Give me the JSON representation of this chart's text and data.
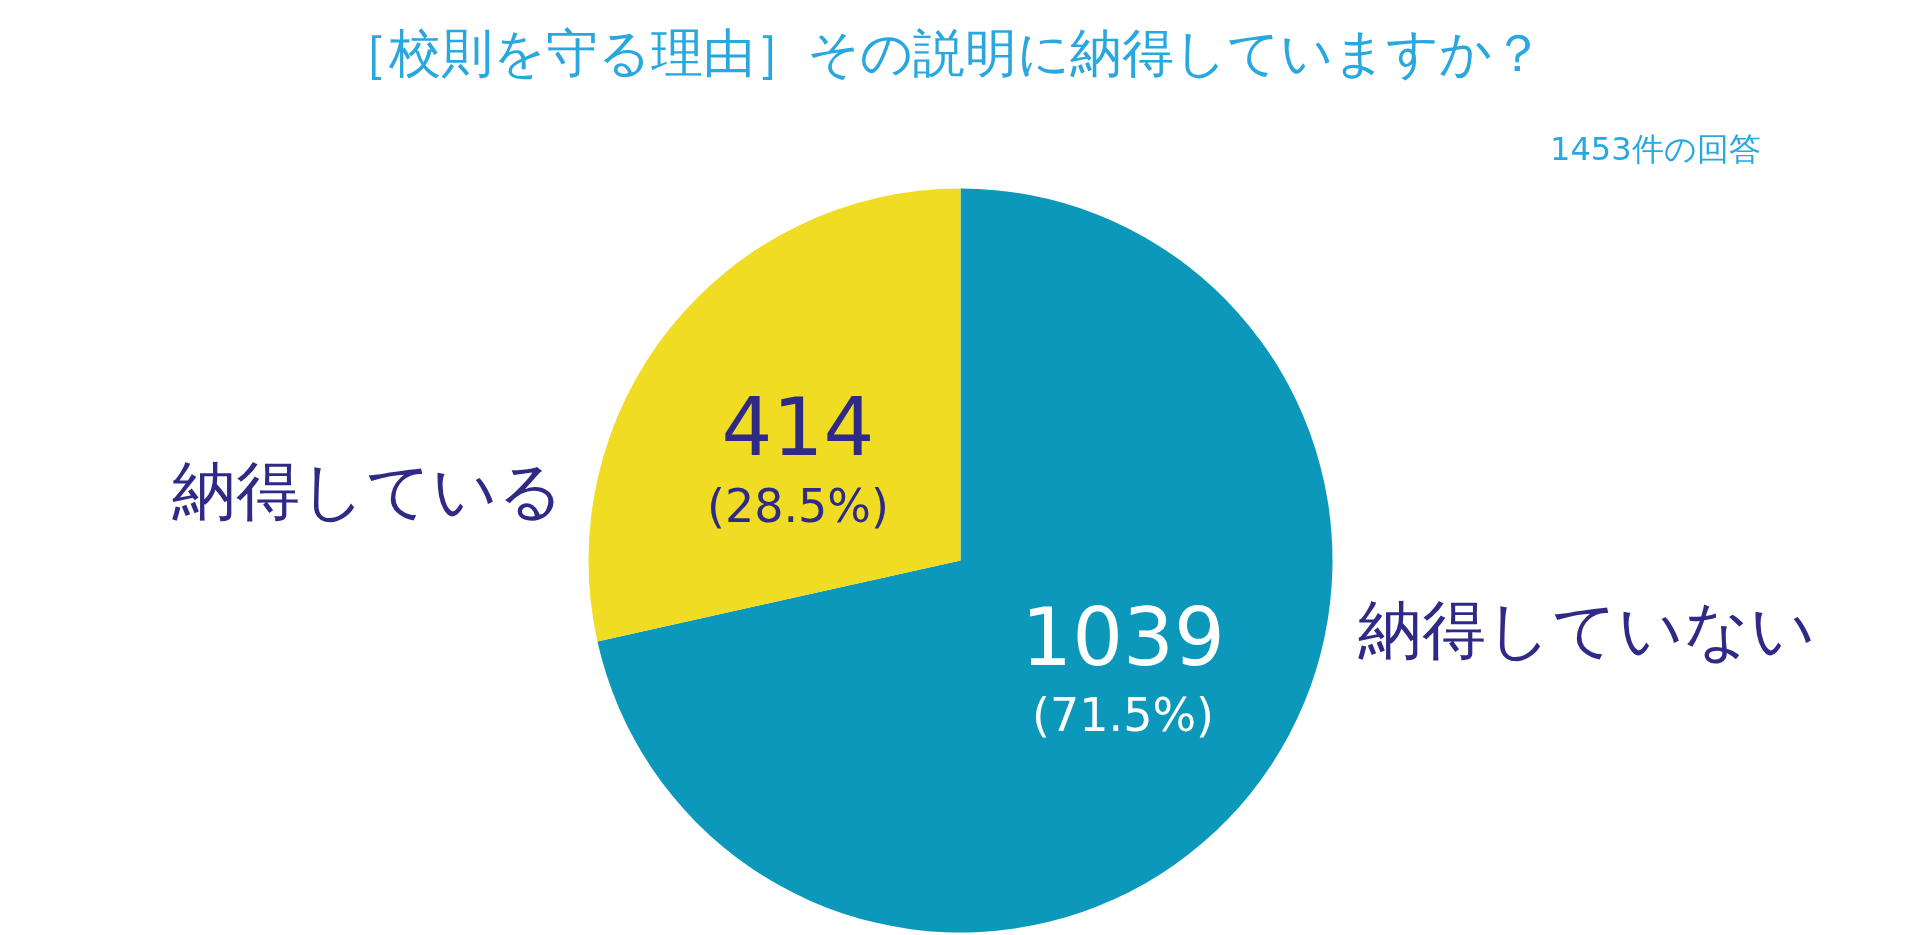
{
  "chart_data": {
    "type": "pie",
    "title": "［校則を守る理由］その説明に納得していますか？",
    "subtitle": "1453件の回答",
    "categories": [
      "納得していない",
      "納得している"
    ],
    "values": [
      1039,
      414
    ],
    "colors": [
      "#0c98bb",
      "#f0dc22"
    ],
    "value_labels": [
      "1039\n(71.5%)",
      "414\n(28.5%)"
    ],
    "legend": false
  }
}
